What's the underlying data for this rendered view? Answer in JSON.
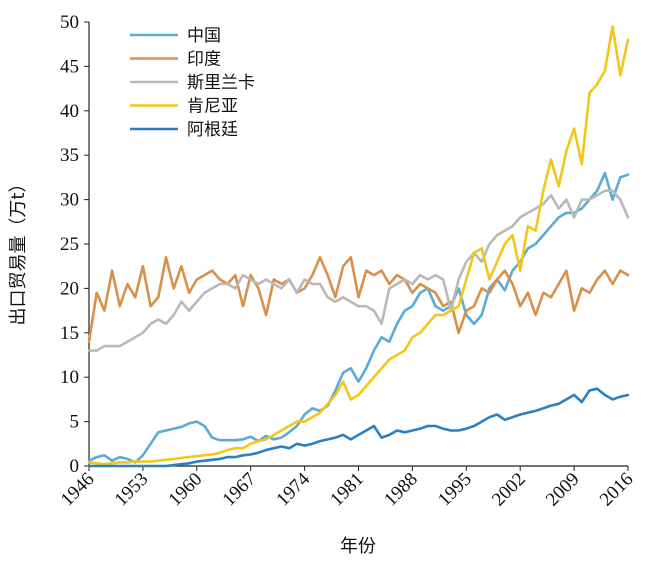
{
  "chart_data": {
    "type": "line",
    "xlabel": "年份",
    "ylabel": "出口贸易量（万t）",
    "xlim": [
      1946,
      2016
    ],
    "ylim": [
      0,
      50
    ],
    "x_ticks": [
      1946,
      1953,
      1960,
      1967,
      1974,
      1981,
      1988,
      1995,
      2002,
      2009,
      2016
    ],
    "y_ticks": [
      0,
      5,
      10,
      15,
      20,
      25,
      30,
      35,
      40,
      45,
      50
    ],
    "grid": false,
    "legend_position": "top-left",
    "series": [
      {
        "name": "中国",
        "color": "#5aabd6",
        "x": [
          1946,
          1947,
          1948,
          1949,
          1950,
          1951,
          1952,
          1953,
          1954,
          1955,
          1956,
          1957,
          1958,
          1959,
          1960,
          1961,
          1962,
          1963,
          1964,
          1965,
          1966,
          1967,
          1968,
          1969,
          1970,
          1971,
          1972,
          1973,
          1974,
          1975,
          1976,
          1977,
          1978,
          1979,
          1980,
          1981,
          1982,
          1983,
          1984,
          1985,
          1986,
          1987,
          1988,
          1989,
          1990,
          1991,
          1992,
          1993,
          1994,
          1995,
          1996,
          1997,
          1998,
          1999,
          2000,
          2001,
          2002,
          2003,
          2004,
          2005,
          2006,
          2007,
          2008,
          2009,
          2010,
          2011,
          2012,
          2013,
          2014,
          2015,
          2016
        ],
        "values": [
          0.6,
          1.0,
          1.2,
          0.6,
          1.0,
          0.8,
          0.4,
          1.2,
          2.5,
          3.8,
          4.0,
          4.2,
          4.4,
          4.8,
          5.0,
          4.5,
          3.2,
          2.9,
          2.9,
          2.9,
          3.0,
          3.3,
          2.8,
          3.4,
          3.0,
          3.2,
          3.8,
          4.5,
          5.8,
          6.5,
          6.2,
          6.8,
          8.5,
          10.5,
          11.0,
          9.5,
          11.0,
          13.0,
          14.5,
          14.0,
          16.0,
          17.5,
          18.0,
          19.5,
          20.0,
          18.0,
          17.5,
          18.0,
          20.0,
          17.0,
          16.0,
          17.0,
          20.0,
          21.0,
          19.8,
          22.0,
          23.0,
          24.5,
          25.0,
          26.0,
          27.0,
          28.0,
          28.5,
          28.5,
          29.0,
          30.0,
          31.0,
          33.0,
          30.0,
          32.5,
          32.8
        ]
      },
      {
        "name": "印度",
        "color": "#d8904c",
        "x": [
          1946,
          1947,
          1948,
          1949,
          1950,
          1951,
          1952,
          1953,
          1954,
          1955,
          1956,
          1957,
          1958,
          1959,
          1960,
          1961,
          1962,
          1963,
          1964,
          1965,
          1966,
          1967,
          1968,
          1969,
          1970,
          1971,
          1972,
          1973,
          1974,
          1975,
          1976,
          1977,
          1978,
          1979,
          1980,
          1981,
          1982,
          1983,
          1984,
          1985,
          1986,
          1987,
          1988,
          1989,
          1990,
          1991,
          1992,
          1993,
          1994,
          1995,
          1996,
          1997,
          1998,
          1999,
          2000,
          2001,
          2002,
          2003,
          2004,
          2005,
          2006,
          2007,
          2008,
          2009,
          2010,
          2011,
          2012,
          2013,
          2014,
          2015,
          2016
        ],
        "values": [
          14.0,
          19.5,
          17.5,
          22.0,
          18.0,
          20.5,
          19.0,
          22.5,
          18.0,
          19.0,
          23.5,
          20.0,
          22.5,
          19.5,
          21.0,
          21.5,
          22.0,
          21.0,
          20.5,
          21.5,
          18.0,
          21.5,
          20.0,
          17.0,
          21.0,
          20.5,
          21.0,
          19.5,
          20.0,
          21.5,
          23.5,
          21.5,
          19.0,
          22.5,
          23.5,
          19.0,
          22.0,
          21.5,
          22.0,
          20.5,
          21.5,
          21.0,
          19.5,
          20.5,
          20.0,
          19.5,
          18.0,
          18.5,
          15.0,
          17.5,
          18.0,
          20.0,
          19.5,
          21.0,
          22.0,
          20.5,
          18.0,
          19.5,
          17.0,
          19.5,
          19.0,
          20.5,
          22.0,
          17.5,
          20.0,
          19.5,
          21.0,
          22.0,
          20.5,
          22.0,
          21.5
        ]
      },
      {
        "name": "斯里兰卡",
        "color": "#b9b9b9",
        "x": [
          1946,
          1947,
          1948,
          1949,
          1950,
          1951,
          1952,
          1953,
          1954,
          1955,
          1956,
          1957,
          1958,
          1959,
          1960,
          1961,
          1962,
          1963,
          1964,
          1965,
          1966,
          1967,
          1968,
          1969,
          1970,
          1971,
          1972,
          1973,
          1974,
          1975,
          1976,
          1977,
          1978,
          1979,
          1980,
          1981,
          1982,
          1983,
          1984,
          1985,
          1986,
          1987,
          1988,
          1989,
          1990,
          1991,
          1992,
          1993,
          1994,
          1995,
          1996,
          1997,
          1998,
          1999,
          2000,
          2001,
          2002,
          2003,
          2004,
          2005,
          2006,
          2007,
          2008,
          2009,
          2010,
          2011,
          2012,
          2013,
          2014,
          2015,
          2016
        ],
        "values": [
          13.0,
          13.0,
          13.5,
          13.5,
          13.5,
          14.0,
          14.5,
          15.0,
          16.0,
          16.5,
          16.0,
          17.0,
          18.5,
          17.5,
          18.5,
          19.5,
          20.0,
          20.5,
          20.5,
          20.0,
          21.5,
          21.0,
          20.5,
          21.0,
          20.5,
          20.0,
          21.0,
          19.5,
          21.0,
          20.5,
          20.5,
          19.0,
          18.5,
          19.0,
          18.5,
          18.0,
          18.0,
          17.5,
          16.0,
          20.0,
          20.5,
          21.0,
          20.5,
          21.5,
          21.0,
          21.5,
          21.0,
          17.5,
          21.0,
          23.0,
          24.0,
          23.0,
          25.0,
          26.0,
          26.5,
          27.0,
          28.0,
          28.5,
          29.0,
          29.5,
          30.5,
          29.0,
          30.0,
          28.0,
          30.0,
          30.0,
          30.5,
          31.0,
          31.0,
          30.0,
          28.0
        ]
      },
      {
        "name": "肯尼亚",
        "color": "#f2c71a",
        "x": [
          1946,
          1947,
          1948,
          1949,
          1950,
          1951,
          1952,
          1953,
          1954,
          1955,
          1956,
          1957,
          1958,
          1959,
          1960,
          1961,
          1962,
          1963,
          1964,
          1965,
          1966,
          1967,
          1968,
          1969,
          1970,
          1971,
          1972,
          1973,
          1974,
          1975,
          1976,
          1977,
          1978,
          1979,
          1980,
          1981,
          1982,
          1983,
          1984,
          1985,
          1986,
          1987,
          1988,
          1989,
          1990,
          1991,
          1992,
          1993,
          1994,
          1995,
          1996,
          1997,
          1998,
          1999,
          2000,
          2001,
          2002,
          2003,
          2004,
          2005,
          2006,
          2007,
          2008,
          2009,
          2010,
          2011,
          2012,
          2013,
          2014,
          2015,
          2016
        ],
        "values": [
          0.4,
          0.3,
          0.2,
          0.3,
          0.4,
          0.4,
          0.5,
          0.5,
          0.5,
          0.6,
          0.7,
          0.8,
          0.9,
          1.0,
          1.1,
          1.2,
          1.3,
          1.5,
          1.8,
          2.0,
          2.0,
          2.5,
          2.8,
          3.0,
          3.5,
          4.0,
          4.5,
          5.0,
          5.0,
          5.5,
          6.0,
          7.0,
          8.0,
          9.5,
          7.5,
          8.0,
          9.0,
          10.0,
          11.0,
          12.0,
          12.5,
          13.0,
          14.5,
          15.0,
          16.0,
          17.0,
          17.0,
          17.5,
          18.0,
          21.0,
          24.0,
          24.5,
          21.0,
          23.0,
          25.0,
          26.0,
          22.0,
          27.0,
          26.5,
          31.0,
          34.5,
          31.5,
          35.5,
          38.0,
          34.0,
          42.0,
          43.0,
          44.5,
          49.5,
          44.0,
          48.0
        ]
      },
      {
        "name": "阿根廷",
        "color": "#2e7fc0",
        "x": [
          1946,
          1947,
          1948,
          1949,
          1950,
          1951,
          1952,
          1953,
          1954,
          1955,
          1956,
          1957,
          1958,
          1959,
          1960,
          1961,
          1962,
          1963,
          1964,
          1965,
          1966,
          1967,
          1968,
          1969,
          1970,
          1971,
          1972,
          1973,
          1974,
          1975,
          1976,
          1977,
          1978,
          1979,
          1980,
          1981,
          1982,
          1983,
          1984,
          1985,
          1986,
          1987,
          1988,
          1989,
          1990,
          1991,
          1992,
          1993,
          1994,
          1995,
          1996,
          1997,
          1998,
          1999,
          2000,
          2001,
          2002,
          2003,
          2004,
          2005,
          2006,
          2007,
          2008,
          2009,
          2010,
          2011,
          2012,
          2013,
          2014,
          2015,
          2016
        ],
        "values": [
          0,
          0,
          0,
          0,
          0,
          0,
          0,
          0,
          0,
          0,
          0,
          0.1,
          0.2,
          0.3,
          0.5,
          0.6,
          0.7,
          0.8,
          1.0,
          1.0,
          1.2,
          1.3,
          1.5,
          1.8,
          2.0,
          2.2,
          2.0,
          2.5,
          2.3,
          2.5,
          2.8,
          3.0,
          3.2,
          3.5,
          3.0,
          3.5,
          4.0,
          4.5,
          3.2,
          3.5,
          4.0,
          3.8,
          4.0,
          4.2,
          4.5,
          4.5,
          4.2,
          4.0,
          4.0,
          4.2,
          4.5,
          5.0,
          5.5,
          5.8,
          5.2,
          5.5,
          5.8,
          6.0,
          6.2,
          6.5,
          6.8,
          7.0,
          7.5,
          8.0,
          7.2,
          8.5,
          8.7,
          8.0,
          7.5,
          7.8,
          8.0
        ]
      }
    ]
  }
}
